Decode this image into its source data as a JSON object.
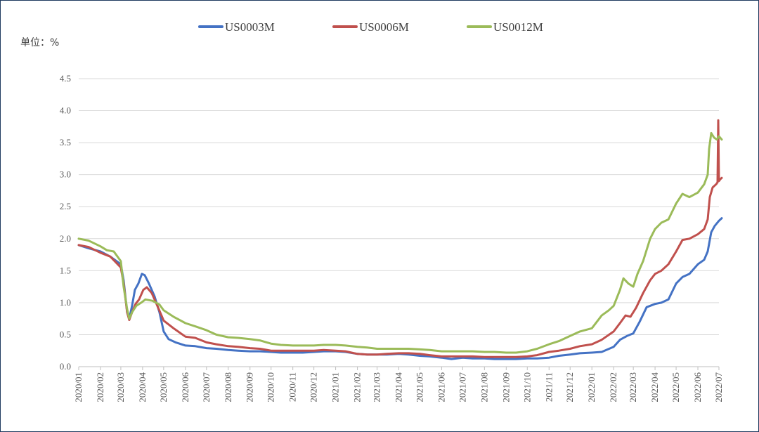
{
  "chart_data": {
    "type": "line",
    "unit_label": "单位：%",
    "ylim": [
      0,
      4.5
    ],
    "y_ticks": [
      "0.0",
      "0.5",
      "1.0",
      "1.5",
      "2.0",
      "2.5",
      "3.0",
      "3.5",
      "4.0",
      "4.5"
    ],
    "x_ticks": [
      "2020/01",
      "2020/02",
      "2020/03",
      "2020/04",
      "2020/05",
      "2020/06",
      "2020/07",
      "2020/08",
      "2020/09",
      "2020/10",
      "2020/11",
      "2020/12",
      "2021/01",
      "2021/02",
      "2021/03",
      "2021/04",
      "2021/05",
      "2021/06",
      "2021/07",
      "2021/08",
      "2021/09",
      "2021/10",
      "2021/11",
      "2021/12",
      "2022/01",
      "2022/02",
      "2022/03",
      "2022/04",
      "2022/05",
      "2022/06",
      "2022/07"
    ],
    "grid": "horizontal",
    "legend_position": "top-center",
    "series": [
      {
        "name": "US0003M",
        "color": "#4472c4",
        "points": [
          [
            "2020/01/01",
            1.9
          ],
          [
            "2020/01/15",
            1.85
          ],
          [
            "2020/02/01",
            1.8
          ],
          [
            "2020/02/15",
            1.72
          ],
          [
            "2020/03/01",
            1.6
          ],
          [
            "2020/03/05",
            1.35
          ],
          [
            "2020/03/10",
            0.85
          ],
          [
            "2020/03/13",
            0.75
          ],
          [
            "2020/03/17",
            0.95
          ],
          [
            "2020/03/21",
            1.2
          ],
          [
            "2020/03/26",
            1.3
          ],
          [
            "2020/03/31",
            1.45
          ],
          [
            "2020/04/04",
            1.43
          ],
          [
            "2020/04/10",
            1.3
          ],
          [
            "2020/04/18",
            1.1
          ],
          [
            "2020/04/25",
            0.85
          ],
          [
            "2020/05/01",
            0.55
          ],
          [
            "2020/05/08",
            0.43
          ],
          [
            "2020/05/18",
            0.38
          ],
          [
            "2020/06/01",
            0.33
          ],
          [
            "2020/06/15",
            0.32
          ],
          [
            "2020/07/01",
            0.29
          ],
          [
            "2020/07/15",
            0.28
          ],
          [
            "2020/08/01",
            0.26
          ],
          [
            "2020/08/15",
            0.25
          ],
          [
            "2020/09/01",
            0.24
          ],
          [
            "2020/09/15",
            0.24
          ],
          [
            "2020/10/01",
            0.23
          ],
          [
            "2020/10/15",
            0.22
          ],
          [
            "2020/11/01",
            0.22
          ],
          [
            "2020/11/15",
            0.22
          ],
          [
            "2020/12/01",
            0.23
          ],
          [
            "2020/12/15",
            0.24
          ],
          [
            "2021/01/01",
            0.24
          ],
          [
            "2021/01/15",
            0.23
          ],
          [
            "2021/02/01",
            0.2
          ],
          [
            "2021/02/15",
            0.19
          ],
          [
            "2021/03/01",
            0.19
          ],
          [
            "2021/03/15",
            0.19
          ],
          [
            "2021/04/01",
            0.2
          ],
          [
            "2021/04/15",
            0.19
          ],
          [
            "2021/05/01",
            0.17
          ],
          [
            "2021/05/15",
            0.16
          ],
          [
            "2021/06/01",
            0.14
          ],
          [
            "2021/06/15",
            0.12
          ],
          [
            "2021/07/01",
            0.14
          ],
          [
            "2021/07/15",
            0.13
          ],
          [
            "2021/08/01",
            0.13
          ],
          [
            "2021/08/15",
            0.12
          ],
          [
            "2021/09/01",
            0.12
          ],
          [
            "2021/09/15",
            0.12
          ],
          [
            "2021/10/01",
            0.13
          ],
          [
            "2021/10/15",
            0.13
          ],
          [
            "2021/11/01",
            0.14
          ],
          [
            "2021/11/15",
            0.17
          ],
          [
            "2021/12/01",
            0.19
          ],
          [
            "2021/12/15",
            0.21
          ],
          [
            "2022/01/01",
            0.22
          ],
          [
            "2022/01/15",
            0.23
          ],
          [
            "2022/02/01",
            0.31
          ],
          [
            "2022/02/10",
            0.42
          ],
          [
            "2022/02/20",
            0.48
          ],
          [
            "2022/03/01",
            0.52
          ],
          [
            "2022/03/10",
            0.7
          ],
          [
            "2022/03/20",
            0.93
          ],
          [
            "2022/04/01",
            0.98
          ],
          [
            "2022/04/10",
            1.0
          ],
          [
            "2022/04/20",
            1.05
          ],
          [
            "2022/05/01",
            1.3
          ],
          [
            "2022/05/10",
            1.4
          ],
          [
            "2022/05/20",
            1.45
          ],
          [
            "2022/06/01",
            1.6
          ],
          [
            "2022/06/10",
            1.67
          ],
          [
            "2022/06/15",
            1.8
          ],
          [
            "2022/06/20",
            2.1
          ],
          [
            "2022/06/25",
            2.2
          ],
          [
            "2022/07/01",
            2.28
          ],
          [
            "2022/07/05",
            2.32
          ]
        ]
      },
      {
        "name": "US0006M",
        "color": "#c0504d",
        "points": [
          [
            "2020/01/01",
            1.9
          ],
          [
            "2020/01/15",
            1.87
          ],
          [
            "2020/02/01",
            1.78
          ],
          [
            "2020/02/15",
            1.72
          ],
          [
            "2020/03/01",
            1.55
          ],
          [
            "2020/03/05",
            1.3
          ],
          [
            "2020/03/10",
            0.85
          ],
          [
            "2020/03/13",
            0.73
          ],
          [
            "2020/03/17",
            0.85
          ],
          [
            "2020/03/22",
            0.98
          ],
          [
            "2020/03/27",
            1.05
          ],
          [
            "2020/04/02",
            1.2
          ],
          [
            "2020/04/07",
            1.24
          ],
          [
            "2020/04/14",
            1.15
          ],
          [
            "2020/04/22",
            0.95
          ],
          [
            "2020/05/01",
            0.72
          ],
          [
            "2020/05/15",
            0.6
          ],
          [
            "2020/06/01",
            0.47
          ],
          [
            "2020/06/15",
            0.45
          ],
          [
            "2020/07/01",
            0.38
          ],
          [
            "2020/07/15",
            0.35
          ],
          [
            "2020/08/01",
            0.32
          ],
          [
            "2020/08/15",
            0.31
          ],
          [
            "2020/09/01",
            0.29
          ],
          [
            "2020/09/15",
            0.28
          ],
          [
            "2020/10/01",
            0.25
          ],
          [
            "2020/10/15",
            0.25
          ],
          [
            "2020/11/01",
            0.25
          ],
          [
            "2020/11/15",
            0.25
          ],
          [
            "2020/12/01",
            0.25
          ],
          [
            "2020/12/15",
            0.26
          ],
          [
            "2021/01/01",
            0.25
          ],
          [
            "2021/01/15",
            0.24
          ],
          [
            "2021/02/01",
            0.2
          ],
          [
            "2021/02/15",
            0.19
          ],
          [
            "2021/03/01",
            0.19
          ],
          [
            "2021/03/15",
            0.2
          ],
          [
            "2021/04/01",
            0.21
          ],
          [
            "2021/04/15",
            0.21
          ],
          [
            "2021/05/01",
            0.2
          ],
          [
            "2021/05/15",
            0.18
          ],
          [
            "2021/06/01",
            0.16
          ],
          [
            "2021/06/15",
            0.16
          ],
          [
            "2021/07/01",
            0.16
          ],
          [
            "2021/07/15",
            0.16
          ],
          [
            "2021/08/01",
            0.15
          ],
          [
            "2021/08/15",
            0.15
          ],
          [
            "2021/09/01",
            0.15
          ],
          [
            "2021/09/15",
            0.15
          ],
          [
            "2021/10/01",
            0.16
          ],
          [
            "2021/10/15",
            0.18
          ],
          [
            "2021/11/01",
            0.23
          ],
          [
            "2021/11/15",
            0.25
          ],
          [
            "2021/12/01",
            0.28
          ],
          [
            "2021/12/15",
            0.32
          ],
          [
            "2022/01/01",
            0.35
          ],
          [
            "2022/01/15",
            0.42
          ],
          [
            "2022/02/01",
            0.55
          ],
          [
            "2022/02/10",
            0.68
          ],
          [
            "2022/02/18",
            0.8
          ],
          [
            "2022/02/25",
            0.78
          ],
          [
            "2022/03/05",
            0.92
          ],
          [
            "2022/03/15",
            1.15
          ],
          [
            "2022/03/25",
            1.35
          ],
          [
            "2022/04/01",
            1.45
          ],
          [
            "2022/04/10",
            1.5
          ],
          [
            "2022/04/20",
            1.6
          ],
          [
            "2022/05/01",
            1.8
          ],
          [
            "2022/05/10",
            1.98
          ],
          [
            "2022/05/20",
            2.0
          ],
          [
            "2022/06/01",
            2.07
          ],
          [
            "2022/06/10",
            2.15
          ],
          [
            "2022/06/15",
            2.3
          ],
          [
            "2022/06/18",
            2.65
          ],
          [
            "2022/06/22",
            2.8
          ],
          [
            "2022/06/27",
            2.85
          ],
          [
            "2022/06/29",
            2.88
          ],
          [
            "2022/06/30",
            3.85
          ],
          [
            "2022/07/01",
            2.9
          ],
          [
            "2022/07/03",
            2.93
          ],
          [
            "2022/07/05",
            2.95
          ]
        ]
      },
      {
        "name": "US0012M",
        "color": "#9bbb59",
        "points": [
          [
            "2020/01/01",
            2.0
          ],
          [
            "2020/01/15",
            1.97
          ],
          [
            "2020/02/01",
            1.88
          ],
          [
            "2020/02/10",
            1.82
          ],
          [
            "2020/02/20",
            1.8
          ],
          [
            "2020/03/01",
            1.65
          ],
          [
            "2020/03/05",
            1.25
          ],
          [
            "2020/03/10",
            0.9
          ],
          [
            "2020/03/13",
            0.75
          ],
          [
            "2020/03/17",
            0.85
          ],
          [
            "2020/03/23",
            0.95
          ],
          [
            "2020/03/30",
            1.0
          ],
          [
            "2020/04/05",
            1.05
          ],
          [
            "2020/04/15",
            1.03
          ],
          [
            "2020/04/25",
            0.97
          ],
          [
            "2020/05/01",
            0.88
          ],
          [
            "2020/05/15",
            0.78
          ],
          [
            "2020/06/01",
            0.68
          ],
          [
            "2020/06/15",
            0.63
          ],
          [
            "2020/07/01",
            0.57
          ],
          [
            "2020/07/15",
            0.5
          ],
          [
            "2020/08/01",
            0.46
          ],
          [
            "2020/08/15",
            0.45
          ],
          [
            "2020/09/01",
            0.43
          ],
          [
            "2020/09/15",
            0.41
          ],
          [
            "2020/10/01",
            0.36
          ],
          [
            "2020/10/15",
            0.34
          ],
          [
            "2020/11/01",
            0.33
          ],
          [
            "2020/11/15",
            0.33
          ],
          [
            "2020/12/01",
            0.33
          ],
          [
            "2020/12/15",
            0.34
          ],
          [
            "2021/01/01",
            0.34
          ],
          [
            "2021/01/15",
            0.33
          ],
          [
            "2021/02/01",
            0.31
          ],
          [
            "2021/02/15",
            0.3
          ],
          [
            "2021/03/01",
            0.28
          ],
          [
            "2021/03/15",
            0.28
          ],
          [
            "2021/04/01",
            0.28
          ],
          [
            "2021/04/15",
            0.28
          ],
          [
            "2021/05/01",
            0.27
          ],
          [
            "2021/05/15",
            0.26
          ],
          [
            "2021/06/01",
            0.24
          ],
          [
            "2021/06/15",
            0.24
          ],
          [
            "2021/07/01",
            0.24
          ],
          [
            "2021/07/15",
            0.24
          ],
          [
            "2021/08/01",
            0.23
          ],
          [
            "2021/08/15",
            0.23
          ],
          [
            "2021/09/01",
            0.22
          ],
          [
            "2021/09/15",
            0.22
          ],
          [
            "2021/10/01",
            0.24
          ],
          [
            "2021/10/15",
            0.28
          ],
          [
            "2021/11/01",
            0.35
          ],
          [
            "2021/11/15",
            0.4
          ],
          [
            "2021/12/01",
            0.48
          ],
          [
            "2021/12/15",
            0.55
          ],
          [
            "2022/01/01",
            0.6
          ],
          [
            "2022/01/15",
            0.8
          ],
          [
            "2022/01/25",
            0.88
          ],
          [
            "2022/02/01",
            0.95
          ],
          [
            "2022/02/10",
            1.2
          ],
          [
            "2022/02/15",
            1.38
          ],
          [
            "2022/02/22",
            1.3
          ],
          [
            "2022/03/01",
            1.25
          ],
          [
            "2022/03/07",
            1.45
          ],
          [
            "2022/03/15",
            1.65
          ],
          [
            "2022/03/25",
            2.0
          ],
          [
            "2022/04/01",
            2.15
          ],
          [
            "2022/04/10",
            2.25
          ],
          [
            "2022/04/20",
            2.3
          ],
          [
            "2022/05/01",
            2.55
          ],
          [
            "2022/05/10",
            2.7
          ],
          [
            "2022/05/20",
            2.65
          ],
          [
            "2022/06/01",
            2.72
          ],
          [
            "2022/06/10",
            2.85
          ],
          [
            "2022/06/15",
            3.0
          ],
          [
            "2022/06/17",
            3.4
          ],
          [
            "2022/06/20",
            3.65
          ],
          [
            "2022/06/24",
            3.58
          ],
          [
            "2022/06/28",
            3.55
          ],
          [
            "2022/07/01",
            3.6
          ],
          [
            "2022/07/05",
            3.55
          ]
        ]
      }
    ]
  }
}
